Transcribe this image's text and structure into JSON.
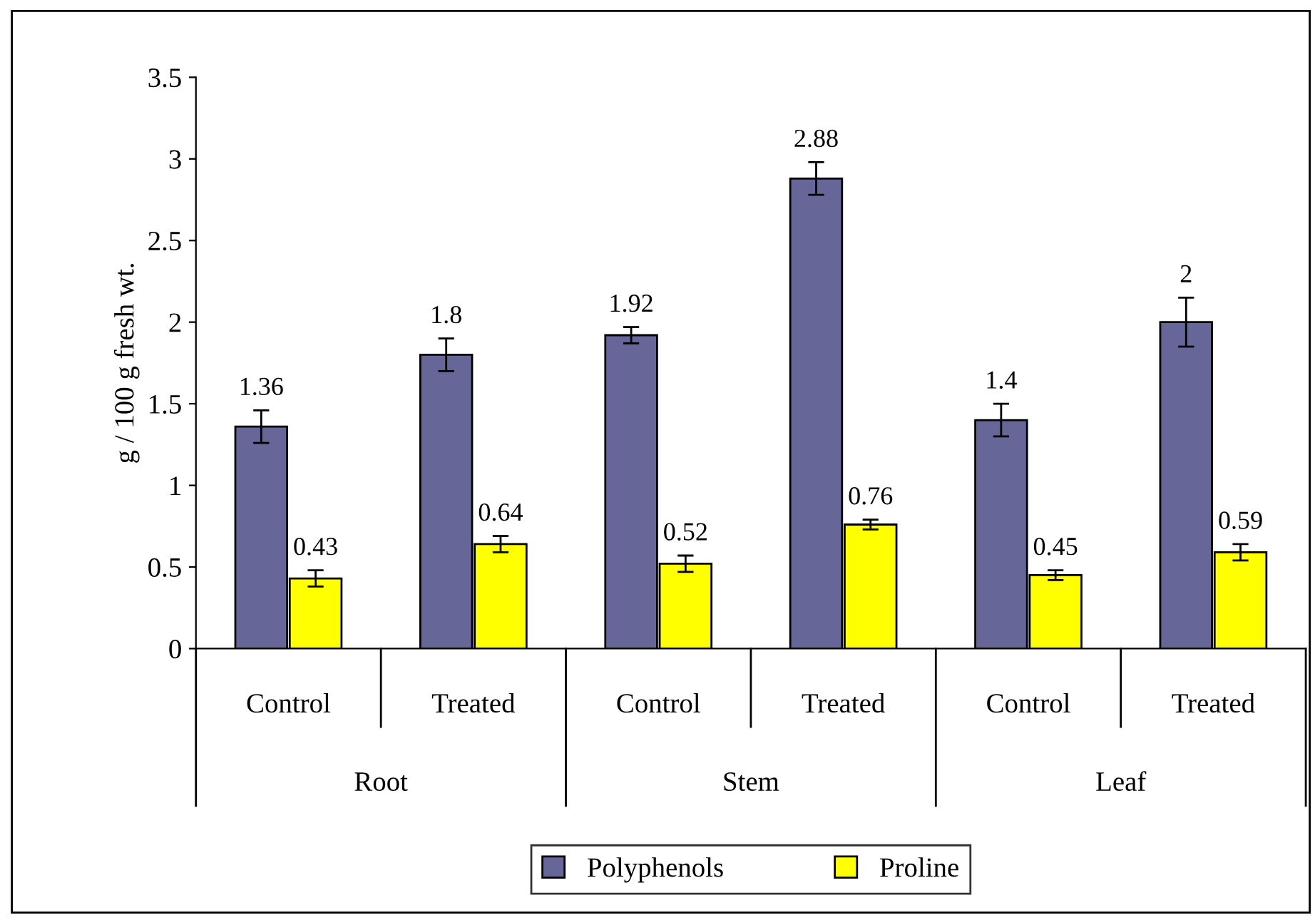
{
  "chart_data": {
    "type": "bar",
    "ylabel": "g / 100 g fresh wt.",
    "categories": [
      "Control",
      "Treated",
      "Control",
      "Treated",
      "Control",
      "Treated"
    ],
    "annotations": [
      "Root",
      "Stem",
      "Leaf"
    ],
    "series": [
      {
        "name": "Polyphenols",
        "color": "#666699",
        "values": [
          1.36,
          1.8,
          1.92,
          2.88,
          1.4,
          2
        ],
        "errors": [
          0.1,
          0.1,
          0.05,
          0.1,
          0.1,
          0.15
        ]
      },
      {
        "name": "Proline",
        "color": "#ffff00",
        "values": [
          0.43,
          0.64,
          0.52,
          0.76,
          0.45,
          0.59
        ],
        "errors": [
          0.05,
          0.05,
          0.05,
          0.03,
          0.03,
          0.05
        ]
      }
    ],
    "ylim": [
      0,
      3.5
    ],
    "yticks": [
      0,
      0.5,
      1,
      1.5,
      2,
      2.5,
      3,
      3.5
    ],
    "data_labels": true,
    "grid": false,
    "legend": "bottom"
  }
}
